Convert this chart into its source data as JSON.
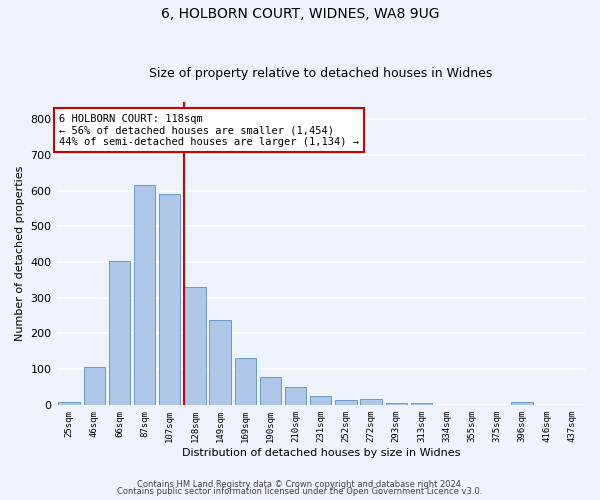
{
  "title1": "6, HOLBORN COURT, WIDNES, WA8 9UG",
  "title2": "Size of property relative to detached houses in Widnes",
  "xlabel": "Distribution of detached houses by size in Widnes",
  "ylabel": "Number of detached properties",
  "bar_labels": [
    "25sqm",
    "46sqm",
    "66sqm",
    "87sqm",
    "107sqm",
    "128sqm",
    "149sqm",
    "169sqm",
    "190sqm",
    "210sqm",
    "231sqm",
    "252sqm",
    "272sqm",
    "293sqm",
    "313sqm",
    "334sqm",
    "355sqm",
    "375sqm",
    "396sqm",
    "416sqm",
    "437sqm"
  ],
  "bar_values": [
    8,
    107,
    403,
    615,
    592,
    330,
    238,
    132,
    77,
    51,
    25,
    13,
    17,
    4,
    6,
    0,
    0,
    0,
    8,
    0,
    0
  ],
  "bar_color": "#aec6e8",
  "bar_edge_color": "#5a8fc0",
  "vline_x": 4.55,
  "vline_color": "#cc0000",
  "annotation_text": "6 HOLBORN COURT: 118sqm\n← 56% of detached houses are smaller (1,454)\n44% of semi-detached houses are larger (1,134) →",
  "annotation_box_color": "#ffffff",
  "annotation_box_edge": "#cc0000",
  "ylim": [
    0,
    850
  ],
  "yticks": [
    0,
    100,
    200,
    300,
    400,
    500,
    600,
    700,
    800
  ],
  "background_color": "#eef2fb",
  "grid_color": "#ffffff",
  "footer1": "Contains HM Land Registry data © Crown copyright and database right 2024.",
  "footer2": "Contains public sector information licensed under the Open Government Licence v3.0."
}
